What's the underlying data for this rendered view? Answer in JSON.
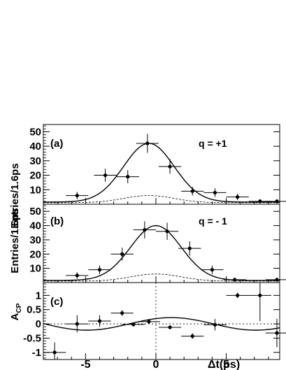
{
  "chart_data": [
    {
      "type": "scatter",
      "panel_label": "(a)",
      "annotation": "q = +1",
      "ylabel": "Entries/1.6ps",
      "ylim": [
        0,
        55
      ],
      "xlim": [
        -8,
        8.8
      ],
      "yticks": [
        "10",
        "20",
        "30",
        "40",
        "50"
      ],
      "points": [
        {
          "x": -5.6,
          "y": 6,
          "err": 2.5
        },
        {
          "x": -3.6,
          "y": 20,
          "err": 4.5
        },
        {
          "x": -2.0,
          "y": 19,
          "err": 4.5
        },
        {
          "x": -0.6,
          "y": 42,
          "err": 6.5
        },
        {
          "x": 1.0,
          "y": 26,
          "err": 5
        },
        {
          "x": 2.6,
          "y": 9,
          "err": 3
        },
        {
          "x": 4.2,
          "y": 8,
          "err": 3
        },
        {
          "x": 5.8,
          "y": 5,
          "err": 2.2
        },
        {
          "x": 7.4,
          "y": 2,
          "err": 1.5
        },
        {
          "x": 8.6,
          "y": 2,
          "err": 1.5
        }
      ],
      "fit": {
        "base": 1.5,
        "amp": 40.5,
        "center": -0.5,
        "width": 1.8
      },
      "background": {
        "base": 1.0,
        "amp": 5.0,
        "center": -0.5,
        "width": 1.8
      }
    },
    {
      "type": "scatter",
      "panel_label": "(b)",
      "annotation": "q = - 1",
      "ylabel": "Entries/1.6ps",
      "ylim": [
        0,
        55
      ],
      "xlim": [
        -8,
        8.8
      ],
      "yticks": [
        "10",
        "20",
        "30",
        "40",
        "50"
      ],
      "points": [
        {
          "x": -5.6,
          "y": 5,
          "err": 2.2
        },
        {
          "x": -4.0,
          "y": 9,
          "err": 3
        },
        {
          "x": -2.4,
          "y": 20,
          "err": 4.5
        },
        {
          "x": -0.8,
          "y": 37,
          "err": 6
        },
        {
          "x": 0.8,
          "y": 36,
          "err": 6
        },
        {
          "x": 2.4,
          "y": 24,
          "err": 5
        },
        {
          "x": 4.0,
          "y": 9,
          "err": 3
        },
        {
          "x": 5.6,
          "y": 2,
          "err": 1.5
        },
        {
          "x": 8.6,
          "y": 2,
          "err": 1.5
        }
      ],
      "fit": {
        "base": 1.5,
        "amp": 38.5,
        "center": 0.0,
        "width": 1.8
      },
      "background": {
        "base": 1.0,
        "amp": 5.0,
        "center": 0.0,
        "width": 1.8
      }
    },
    {
      "type": "scatter",
      "panel_label": "(c)",
      "ylabel": "A_CP",
      "ylim": [
        -1.25,
        1.45
      ],
      "xlim": [
        -8,
        8.8
      ],
      "yticks": [
        "-1",
        "-0.5",
        "0",
        "0.5",
        "1"
      ],
      "xlabel": "Δt(ps)",
      "xticks": [
        "-5",
        "0",
        "5"
      ],
      "points": [
        {
          "x": -7.2,
          "y": -1.0,
          "err": 0.35
        },
        {
          "x": -5.6,
          "y": 0.0,
          "err": 0.3
        },
        {
          "x": -4.0,
          "y": 0.1,
          "err": 0.2
        },
        {
          "x": -2.4,
          "y": 0.38,
          "err": 0.1
        },
        {
          "x": -1.6,
          "y": -0.02,
          "err": 0.07
        },
        {
          "x": -0.5,
          "y": 0.08,
          "err": 0.07
        },
        {
          "x": 1.0,
          "y": -0.12,
          "err": 0.07
        },
        {
          "x": 2.6,
          "y": -0.43,
          "err": 0.1
        },
        {
          "x": 4.2,
          "y": -0.03,
          "err": 0.2
        },
        {
          "x": 5.8,
          "y": 1.0,
          "err": 0.1
        },
        {
          "x": 7.4,
          "y": 1.0,
          "err": 0.9
        },
        {
          "x": 8.6,
          "y": -0.32,
          "err": 0.5
        }
      ],
      "fit": {
        "amp": 0.22,
        "period": 12.0,
        "phase": 1.0
      }
    }
  ]
}
